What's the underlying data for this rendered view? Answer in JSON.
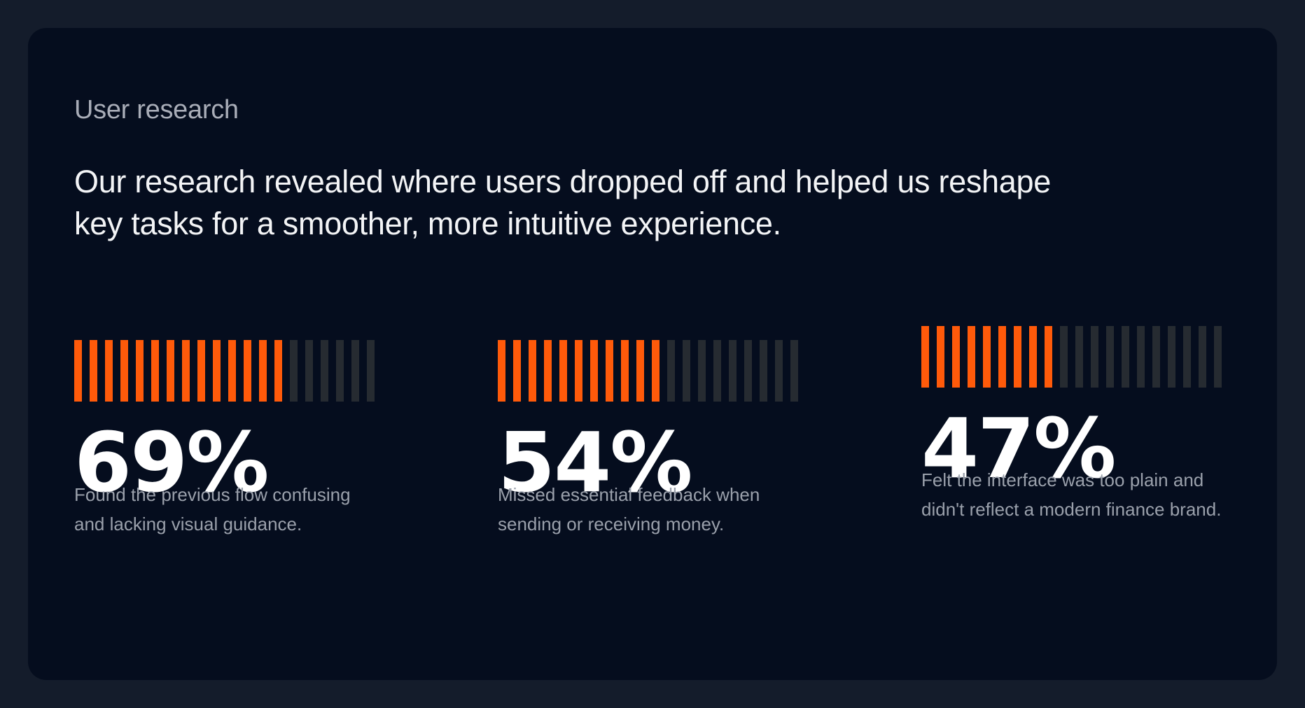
{
  "section": {
    "eyebrow": "User research",
    "headline": "Our research revealed where users dropped off and helped us reshape key tasks for a smoother, more intuitive experience."
  },
  "colors": {
    "accent": "#ff5a0a",
    "bar_inactive": "#262b31",
    "card_bg": "#050d1e",
    "page_bg": "#141c2b"
  },
  "stats": [
    {
      "value": "69%",
      "level": 0.69,
      "description": "Found the previous flow confusing and lacking visual guidance."
    },
    {
      "value": "54%",
      "level": 0.54,
      "description": "Missed essential feedback when sending or receiving money."
    },
    {
      "value": "47%",
      "level": 0.47,
      "description": "Felt the interface was too plain and didn't reflect a modern finance brand."
    }
  ]
}
